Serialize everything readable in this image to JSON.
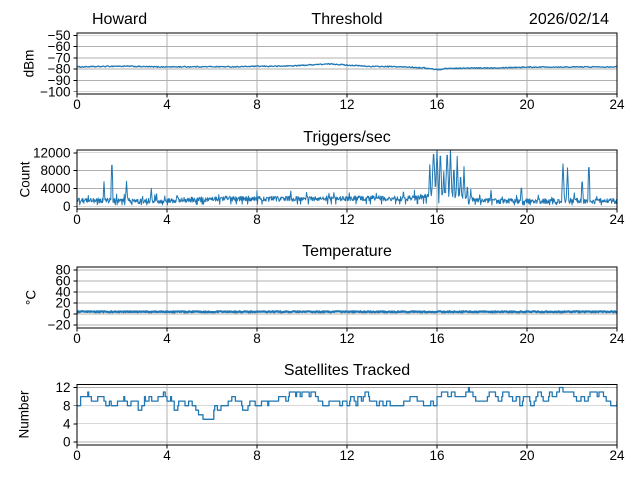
{
  "colors": {
    "line": "#1f77b4",
    "grid": "#b0b0b0",
    "spine": "#000000",
    "text": "#000000",
    "background": "#ffffff"
  },
  "chart_data": [
    {
      "id": "threshold",
      "type": "line",
      "title": "Threshold",
      "title_left": "Howard",
      "title_right": "2026/02/14",
      "ylabel": "dBm",
      "xlim": [
        0,
        24
      ],
      "ylim": [
        -102,
        -48
      ],
      "xticks": [
        0,
        4,
        8,
        12,
        16,
        20,
        24
      ],
      "yticks": [
        -100,
        -90,
        -80,
        -70,
        -60,
        -50
      ],
      "grid": true,
      "series": [
        {
          "name": "signal-dbm",
          "style": "noisy-line",
          "line_width": 1.3,
          "noise": 0.45,
          "anchors": [
            [
              0,
              -78
            ],
            [
              0.8,
              -77.8
            ],
            [
              1.6,
              -77.4
            ],
            [
              2.4,
              -77.5
            ],
            [
              3.2,
              -77.9
            ],
            [
              4,
              -78
            ],
            [
              5,
              -77.9
            ],
            [
              6,
              -77.8
            ],
            [
              7,
              -77.9
            ],
            [
              8,
              -77.5
            ],
            [
              9,
              -77.4
            ],
            [
              9.8,
              -76.9
            ],
            [
              10.5,
              -76
            ],
            [
              11,
              -75.6
            ],
            [
              11.4,
              -75.5
            ],
            [
              12,
              -76.4
            ],
            [
              12.5,
              -77
            ],
            [
              13,
              -77.6
            ],
            [
              14,
              -77.8
            ],
            [
              14.8,
              -78.2
            ],
            [
              15.4,
              -78.8
            ],
            [
              15.9,
              -80.2
            ],
            [
              16.1,
              -80.4
            ],
            [
              16.4,
              -79.4
            ],
            [
              17,
              -79.2
            ],
            [
              18,
              -79
            ],
            [
              19,
              -78.6
            ],
            [
              20,
              -78.2
            ],
            [
              21,
              -78.1
            ],
            [
              22,
              -78.1
            ],
            [
              23,
              -78
            ],
            [
              24,
              -77.9
            ]
          ]
        }
      ]
    },
    {
      "id": "triggers",
      "type": "line",
      "title": "Triggers/sec",
      "ylabel": "Count",
      "xlim": [
        0,
        24
      ],
      "ylim": [
        -620,
        12620
      ],
      "xticks": [
        0,
        4,
        8,
        12,
        16,
        20,
        24
      ],
      "yticks": [
        0,
        4000,
        8000,
        12000
      ],
      "grid": true,
      "series": [
        {
          "name": "trigger-count",
          "style": "spiky-line",
          "line_width": 1,
          "noise": 600,
          "baseline_anchors": [
            [
              0,
              1100
            ],
            [
              1,
              1150
            ],
            [
              2,
              1100
            ],
            [
              3,
              1050
            ],
            [
              4,
              1100
            ],
            [
              5,
              1300
            ],
            [
              6,
              1500
            ],
            [
              7,
              1600
            ],
            [
              8,
              1550
            ],
            [
              9,
              1550
            ],
            [
              10,
              1600
            ],
            [
              11,
              1650
            ],
            [
              12,
              1600
            ],
            [
              13,
              1700
            ],
            [
              14,
              1650
            ],
            [
              15,
              1700
            ],
            [
              15.8,
              2400
            ],
            [
              16.5,
              2500
            ],
            [
              17.2,
              2000
            ],
            [
              17.7,
              1300
            ],
            [
              18.2,
              1050
            ],
            [
              19,
              1000
            ],
            [
              20,
              1000
            ],
            [
              21,
              1050
            ],
            [
              22,
              1100
            ],
            [
              23,
              1000
            ],
            [
              24,
              1050
            ]
          ],
          "spikes": [
            [
              1.2,
              5500,
              0.04
            ],
            [
              1.55,
              10800,
              0.05
            ],
            [
              2.2,
              5600,
              0.05
            ],
            [
              3.3,
              4000,
              0.05
            ],
            [
              3.9,
              2300,
              0.04
            ],
            [
              4.45,
              2800,
              0.05
            ],
            [
              6.3,
              2600,
              0.04
            ],
            [
              9.5,
              3400,
              0.05
            ],
            [
              11.2,
              2900,
              0.04
            ],
            [
              12.1,
              3000,
              0.04
            ],
            [
              13.3,
              2900,
              0.04
            ],
            [
              14.5,
              3200,
              0.04
            ],
            [
              15.68,
              9300,
              0.05
            ],
            [
              15.85,
              12800,
              0.08
            ],
            [
              16.0,
              12800,
              0.07
            ],
            [
              16.15,
              12800,
              0.06
            ],
            [
              16.3,
              7800,
              0.05
            ],
            [
              16.45,
              12800,
              0.07
            ],
            [
              16.6,
              12800,
              0.06
            ],
            [
              16.75,
              9500,
              0.05
            ],
            [
              16.9,
              11200,
              0.05
            ],
            [
              17.05,
              7600,
              0.05
            ],
            [
              17.2,
              8900,
              0.05
            ],
            [
              17.35,
              5200,
              0.04
            ],
            [
              17.5,
              3800,
              0.04
            ],
            [
              17.9,
              2600,
              0.04
            ],
            [
              18.4,
              3600,
              0.04
            ],
            [
              18.9,
              2100,
              0.04
            ],
            [
              19.75,
              4800,
              0.05
            ],
            [
              20.5,
              2500,
              0.04
            ],
            [
              21.1,
              2000,
              0.04
            ],
            [
              21.6,
              9500,
              0.06
            ],
            [
              21.8,
              8600,
              0.05
            ],
            [
              22.1,
              3000,
              0.04
            ],
            [
              22.45,
              6400,
              0.05
            ],
            [
              22.75,
              10200,
              0.05
            ],
            [
              23.1,
              2200,
              0.04
            ]
          ]
        }
      ]
    },
    {
      "id": "temperature",
      "type": "line",
      "title": "Temperature",
      "ylabel": "°C",
      "xlim": [
        0,
        24
      ],
      "ylim": [
        -25.5,
        85.5
      ],
      "xticks": [
        0,
        4,
        8,
        12,
        16,
        20,
        24
      ],
      "yticks": [
        -20,
        0,
        20,
        40,
        60,
        80
      ],
      "grid": true,
      "series": [
        {
          "name": "temperature-c",
          "style": "noisy-line",
          "line_width": 2.2,
          "noise": 1.0,
          "anchors": [
            [
              0,
              4
            ],
            [
              24,
              4
            ]
          ]
        }
      ]
    },
    {
      "id": "satellites",
      "type": "line",
      "title": "Satellites Tracked",
      "ylabel": "Number",
      "xlim": [
        0,
        24
      ],
      "ylim": [
        -0.65,
        12.65
      ],
      "xticks": [
        0,
        4,
        8,
        12,
        16,
        20,
        24
      ],
      "yticks": [
        0,
        4,
        8,
        12
      ],
      "grid": true,
      "series": [
        {
          "name": "satellite-count",
          "style": "step-line",
          "line_width": 1.3,
          "jitter": 1,
          "anchors": [
            [
              0,
              8
            ],
            [
              0.15,
              10
            ],
            [
              0.5,
              9
            ],
            [
              0.9,
              10
            ],
            [
              1.2,
              9
            ],
            [
              1.5,
              8
            ],
            [
              1.8,
              9
            ],
            [
              2.1,
              8
            ],
            [
              2.4,
              9
            ],
            [
              2.7,
              8
            ],
            [
              3.0,
              10
            ],
            [
              3.3,
              9
            ],
            [
              3.6,
              10
            ],
            [
              3.9,
              9
            ],
            [
              4.2,
              8
            ],
            [
              4.5,
              9
            ],
            [
              4.8,
              8
            ],
            [
              5.1,
              7
            ],
            [
              5.4,
              6
            ],
            [
              5.6,
              5
            ],
            [
              5.75,
              5
            ],
            [
              5.9,
              6
            ],
            [
              6.1,
              7
            ],
            [
              6.4,
              8
            ],
            [
              6.7,
              9
            ],
            [
              7.0,
              9
            ],
            [
              7.3,
              8
            ],
            [
              7.6,
              9
            ],
            [
              7.9,
              8
            ],
            [
              8.2,
              9
            ],
            [
              8.5,
              10
            ],
            [
              8.8,
              9
            ],
            [
              9.1,
              10
            ],
            [
              9.4,
              11
            ],
            [
              9.7,
              10
            ],
            [
              10.0,
              11
            ],
            [
              10.3,
              10
            ],
            [
              10.6,
              9
            ],
            [
              10.9,
              8
            ],
            [
              11.2,
              9
            ],
            [
              11.5,
              8
            ],
            [
              11.8,
              9
            ],
            [
              12.1,
              10
            ],
            [
              12.4,
              9
            ],
            [
              12.7,
              10
            ],
            [
              13.0,
              9
            ],
            [
              13.3,
              8
            ],
            [
              13.6,
              9
            ],
            [
              13.9,
              8
            ],
            [
              14.2,
              8
            ],
            [
              14.5,
              9
            ],
            [
              14.8,
              10
            ],
            [
              15.1,
              9
            ],
            [
              15.4,
              8
            ],
            [
              15.7,
              9
            ],
            [
              16.0,
              10
            ],
            [
              16.2,
              11
            ],
            [
              16.5,
              11
            ],
            [
              16.8,
              10
            ],
            [
              17.1,
              10
            ],
            [
              17.4,
              11
            ],
            [
              17.7,
              10
            ],
            [
              18.0,
              10
            ],
            [
              18.3,
              11
            ],
            [
              18.6,
              10
            ],
            [
              18.9,
              11
            ],
            [
              19.2,
              10
            ],
            [
              19.5,
              9
            ],
            [
              19.8,
              10
            ],
            [
              20.1,
              9
            ],
            [
              20.4,
              10
            ],
            [
              20.7,
              9
            ],
            [
              21.0,
              10
            ],
            [
              21.3,
              11
            ],
            [
              21.6,
              11
            ],
            [
              21.9,
              11
            ],
            [
              22.2,
              10
            ],
            [
              22.5,
              10
            ],
            [
              22.8,
              11
            ],
            [
              23.1,
              10
            ],
            [
              23.4,
              9
            ],
            [
              23.7,
              8
            ],
            [
              24,
              9
            ]
          ]
        }
      ]
    }
  ]
}
